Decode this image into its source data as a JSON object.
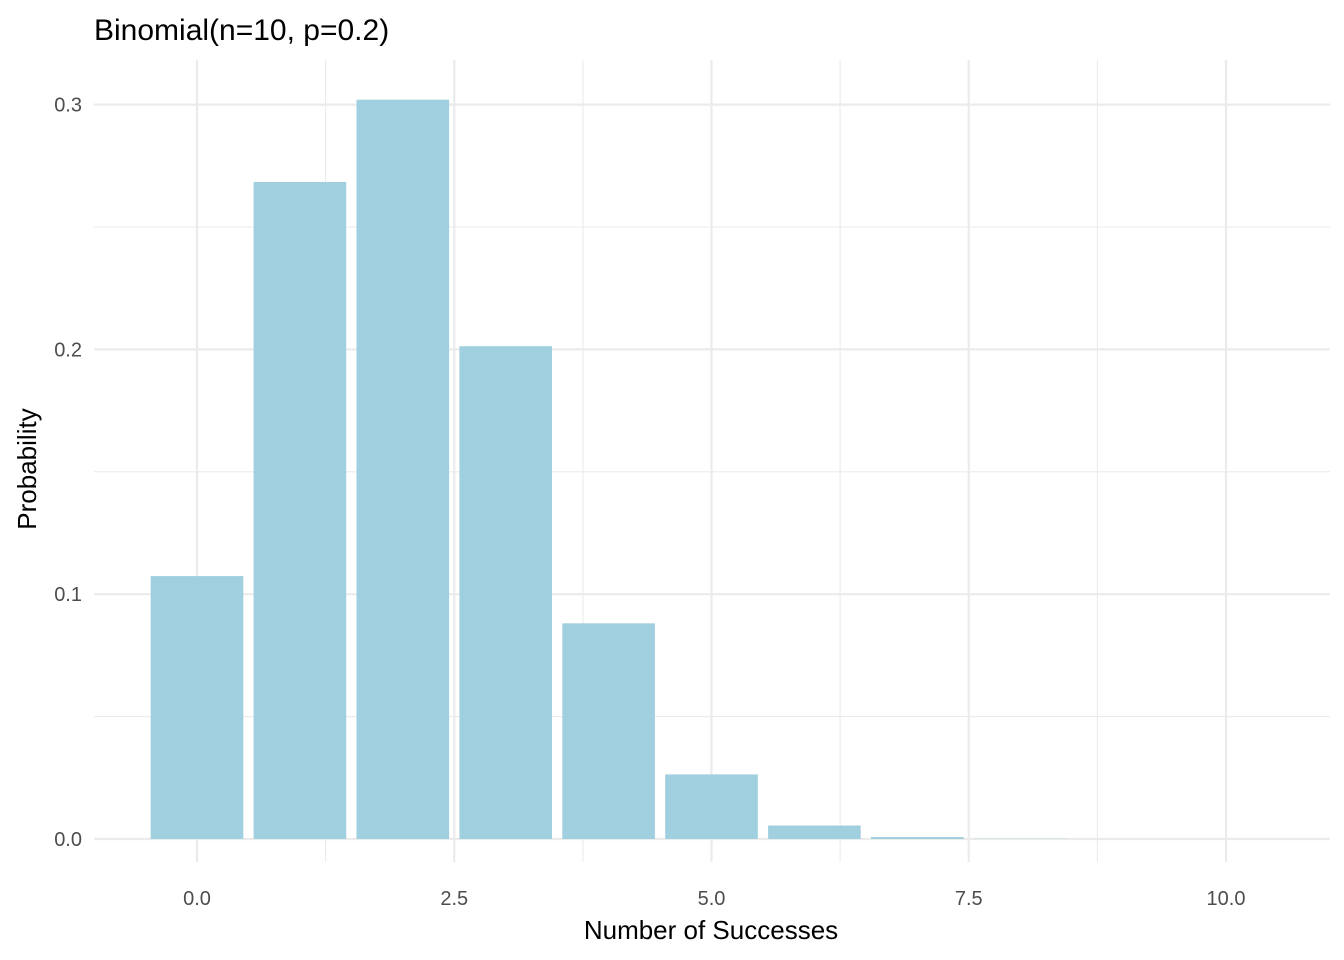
{
  "chart_data": {
    "type": "bar",
    "title": "Binomial(n=10, p=0.2)",
    "xlabel": "Number of Successes",
    "ylabel": "Probability",
    "x": [
      0,
      1,
      2,
      3,
      4,
      5,
      6,
      7,
      8,
      9,
      10
    ],
    "values": [
      0.1074,
      0.2684,
      0.302,
      0.2013,
      0.0881,
      0.0264,
      0.0055,
      0.0008,
      0.0001,
      0.0,
      0.0
    ],
    "bar_color": "#a0cfe0",
    "xlim": [
      -0.5,
      10.5
    ],
    "ylim": [
      0,
      0.302
    ],
    "x_ticks": [
      0,
      2.5,
      5,
      7.5,
      10
    ],
    "x_tick_labels": [
      "0.0",
      "2.5",
      "5.0",
      "7.5",
      "10.0"
    ],
    "y_ticks": [
      0,
      0.1,
      0.2,
      0.3
    ],
    "y_tick_labels": [
      "0.0",
      "0.1",
      "0.2",
      "0.3"
    ],
    "grid": true,
    "legend": "none"
  }
}
